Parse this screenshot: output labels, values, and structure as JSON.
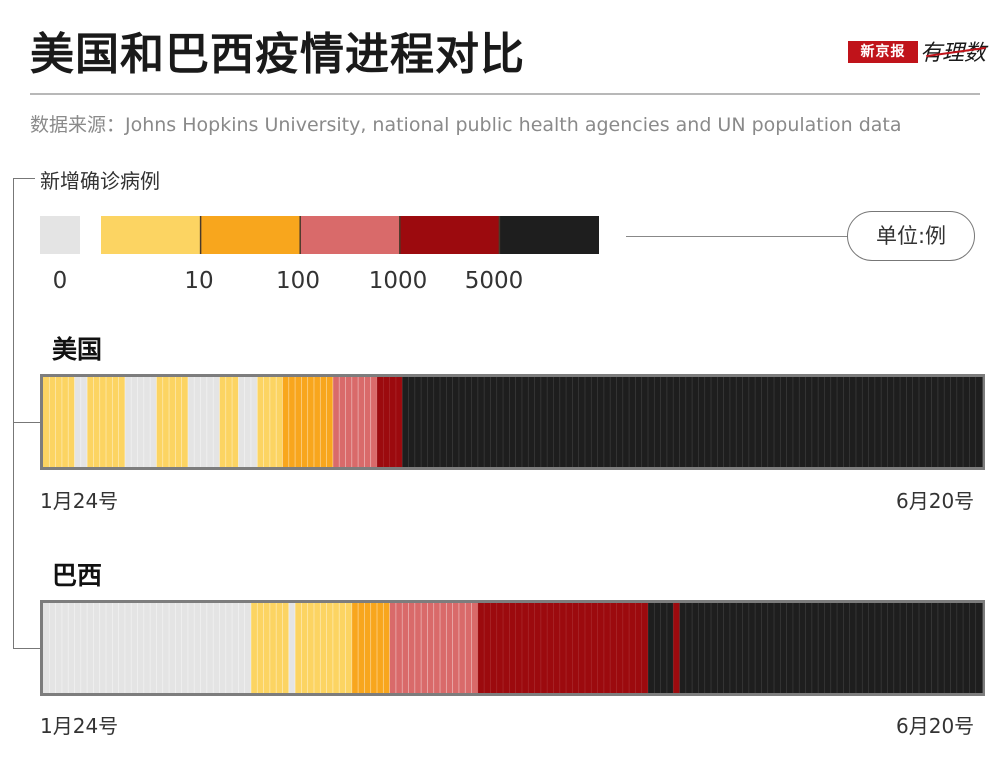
{
  "title": "美国和巴西疫情进程对比",
  "logo": {
    "box_text": "新京报",
    "script_text": "有理数"
  },
  "source": "数据来源：Johns Hopkins University, national public health agencies and UN population data",
  "colors": {
    "0": "#e4e4e4",
    "1-10": "#fcd462",
    "10-100": "#f8a61d",
    "100-1000": "#d96a6a",
    "1000-5000": "#9c0a0e",
    ">5000": "#1e1e1e",
    "divider": "#cfcfcf"
  },
  "chart_data": {
    "type": "heatmap",
    "title": "美国和巴西疫情进程对比",
    "legend_title": "新增确诊病例",
    "unit": "单位:例",
    "bins": [
      {
        "key": "0",
        "range": "0"
      },
      {
        "key": "1-10",
        "range": "0-10"
      },
      {
        "key": "10-100",
        "range": "10-100"
      },
      {
        "key": "100-1000",
        "range": "100-1000"
      },
      {
        "key": "1000-5000",
        "range": "1000-5000"
      },
      {
        "key": ">5000",
        "range": ">5000"
      }
    ],
    "bin_tick_labels": [
      "0",
      "10",
      "100",
      "1000",
      "5000"
    ],
    "x_start": "1月24号",
    "x_end": "6月20号",
    "n_days": 149,
    "series": [
      {
        "name": "美国",
        "runs": [
          [
            "1-10",
            5
          ],
          [
            "0",
            2
          ],
          [
            "1-10",
            6
          ],
          [
            "0",
            5
          ],
          [
            "1-10",
            5
          ],
          [
            "0",
            5
          ],
          [
            "1-10",
            3
          ],
          [
            "0",
            3
          ],
          [
            "1-10",
            4
          ],
          [
            "10-100",
            8
          ],
          [
            "100-1000",
            7
          ],
          [
            "1000-5000",
            4
          ],
          [
            ">5000",
            92
          ]
        ]
      },
      {
        "name": "巴西",
        "runs": [
          [
            "0",
            33
          ],
          [
            "1-10",
            6
          ],
          [
            "0",
            1
          ],
          [
            "1-10",
            9
          ],
          [
            "10-100",
            6
          ],
          [
            "100-1000",
            14
          ],
          [
            "1000-5000",
            27
          ],
          [
            ">5000",
            4
          ],
          [
            "1000-5000",
            1
          ],
          [
            ">5000",
            48
          ]
        ]
      }
    ]
  }
}
